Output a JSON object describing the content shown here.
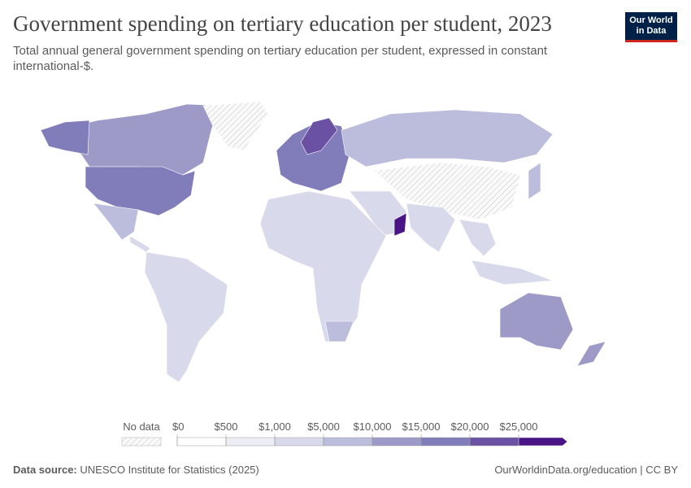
{
  "header": {
    "title": "Government spending on tertiary education per student, 2023",
    "subtitle": "Total annual general government spending on tertiary education per student, expressed in constant international-$."
  },
  "logo": {
    "line1": "Our World",
    "line2": "in Data"
  },
  "legend": {
    "no_data": "No data",
    "ticks": [
      {
        "value": 0,
        "label": "$0"
      },
      {
        "value": 500,
        "label": "$500"
      },
      {
        "value": 1000,
        "label": "$1,000"
      },
      {
        "value": 5000,
        "label": "$5,000"
      },
      {
        "value": 10000,
        "label": "$10,000"
      },
      {
        "value": 15000,
        "label": "$15,000"
      },
      {
        "value": 20000,
        "label": "$20,000"
      },
      {
        "value": 25000,
        "label": "$25,000"
      }
    ],
    "colors": [
      "#ffffff",
      "#ededf6",
      "#d9d9ec",
      "#bcbddc",
      "#9e9ac8",
      "#807dba",
      "#6a51a3",
      "#4a1486"
    ]
  },
  "footer": {
    "source_label": "Data source:",
    "source": "UNESCO Institute for Statistics (2025)",
    "url": "OurWorldinData.org/education | CC BY"
  }
}
